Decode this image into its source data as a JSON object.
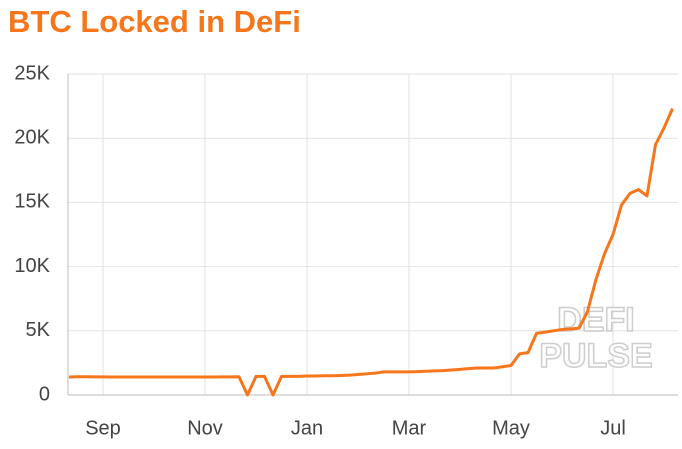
{
  "chart_data": {
    "type": "line",
    "title": "BTC Locked in DeFi",
    "watermark": [
      "DEFI",
      "PULSE"
    ],
    "categories": [
      null,
      null,
      null,
      null,
      "Sep",
      null,
      null,
      null,
      null,
      null,
      null,
      null,
      null,
      null,
      null,
      null,
      "Nov",
      null,
      null,
      null,
      null,
      null,
      null,
      null,
      null,
      null,
      null,
      null,
      "Jan",
      null,
      null,
      null,
      null,
      null,
      null,
      null,
      null,
      null,
      null,
      null,
      "Mar",
      null,
      null,
      null,
      null,
      null,
      null,
      null,
      null,
      null,
      null,
      null,
      "May",
      null,
      null,
      null,
      null,
      null,
      null,
      null,
      null,
      null,
      null,
      null,
      "Jul",
      null,
      null,
      null,
      null,
      null,
      null,
      null
    ],
    "series": [
      {
        "name": "BTC Locked",
        "color": "#f7761b",
        "values": [
          1400,
          1420,
          1420,
          1410,
          1410,
          1400,
          1400,
          1400,
          1400,
          1400,
          1400,
          1400,
          1400,
          1400,
          1400,
          1400,
          1400,
          1400,
          1410,
          1410,
          1420,
          0,
          1450,
          1450,
          0,
          1450,
          1450,
          1450,
          1480,
          1480,
          1500,
          1500,
          1520,
          1550,
          1600,
          1650,
          1700,
          1800,
          1800,
          1800,
          1800,
          1820,
          1850,
          1880,
          1900,
          1950,
          2000,
          2050,
          2100,
          2100,
          2100,
          2200,
          2300,
          3200,
          3300,
          4800,
          4900,
          5000,
          5100,
          5150,
          5200,
          6500,
          9000,
          11000,
          12500,
          14800,
          15700,
          16000,
          15500,
          19500,
          20800,
          22300
        ]
      }
    ],
    "ylim": [
      0,
      25000
    ],
    "yticks": [
      0,
      {
        "value": 5000,
        "label": "5K"
      },
      {
        "value": 10000,
        "label": "10K"
      },
      {
        "value": 15000,
        "label": "15K"
      },
      {
        "value": 20000,
        "label": "20K"
      },
      {
        "value": 25000,
        "label": "25K"
      }
    ],
    "grid": true
  }
}
